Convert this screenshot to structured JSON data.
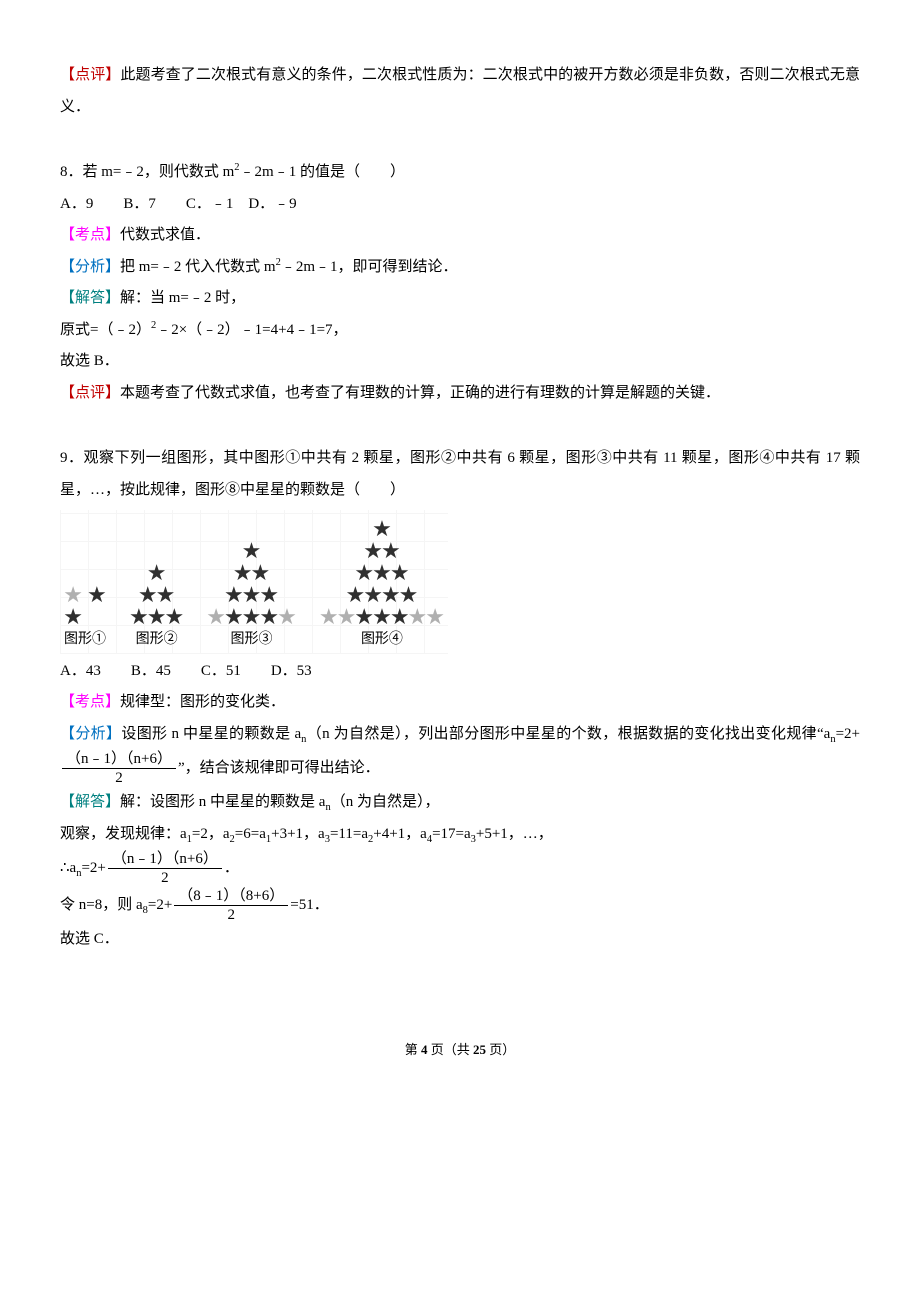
{
  "p1": {
    "label": "【点评】",
    "text": "此题考查了二次根式有意义的条件，二次根式性质为：二次根式中的被开方数必须是非负数，否则二次根式无意义．"
  },
  "q8": {
    "stem_a": "8．若 m=﹣2，则代数式 m",
    "stem_b": "﹣2m﹣1 的值是（　　）",
    "options": "A．9　　B．7　　C．﹣1　D．﹣9",
    "kd_label": "【考点】",
    "kd_text": "代数式求值．",
    "fx_label": "【分析】",
    "fx_a": "把 m=﹣2 代入代数式 m",
    "fx_b": "﹣2m﹣1，即可得到结论．",
    "jd_label": "【解答】",
    "jd_text": "解：当 m=﹣2 时，",
    "jd_line2_a": "原式=（﹣2）",
    "jd_line2_b": "﹣2×（﹣2）﹣1=4+4﹣1=7，",
    "jd_line3": "故选 B．",
    "dp_label": "【点评】",
    "dp_text": "本题考查了代数式求值，也考查了有理数的计算，正确的进行有理数的计算是解题的关键．"
  },
  "q9": {
    "stem": "9．观察下列一组图形，其中图形①中共有 2 颗星，图形②中共有 6 颗星，图形③中共有 11 颗星，图形④中共有 17 颗星，…，按此规律，图形⑧中星星的颗数是（　　）",
    "figure": {
      "labels": [
        "图形①",
        "图形②",
        "图形③",
        "图形④"
      ],
      "star_color": "#303030",
      "side_star_color": "#b0b0b0",
      "triangles": [
        [
          1
        ],
        [
          1,
          2,
          3
        ],
        [
          1,
          2,
          3,
          5
        ],
        [
          1,
          2,
          3,
          4,
          7
        ]
      ],
      "side_counts": [
        1,
        0,
        0,
        0
      ]
    },
    "options": "A．43　　B．45　　C．51　　D．53",
    "kd_label": "【考点】",
    "kd_text": "规律型：图形的变化类．",
    "fx_label": "【分析】",
    "fx_a": "设图形 n 中星星的颗数是 a",
    "fx_b": "（n 为自然是），列出部分图形中星星的个数，根据数据的变化找出变化规律“a",
    "fx_c": "=2+",
    "fx_num": "（n﹣1）（n+6）",
    "fx_den": "2",
    "fx_d": "”，结合该规律即可得出结论．",
    "jd_label": "【解答】",
    "jd_a": "解：设图形 n 中星星的颗数是 a",
    "jd_b": "（n 为自然是），",
    "jd_line2": "观察，发现规律：a",
    "jd_line2_b": "=2，a",
    "jd_line2_c": "=6=a",
    "jd_line2_d": "+3+1，a",
    "jd_line2_e": "=11=a",
    "jd_line2_f": "+4+1，a",
    "jd_line2_g": "=17=a",
    "jd_line2_h": "+5+1，…，",
    "jd_line3_a": "∴a",
    "jd_line3_b": "=2+",
    "jd_line3_num": "（n﹣1）（n+6）",
    "jd_line3_den": "2",
    "jd_line3_c": "．",
    "jd_line4_a": "令 n=8，则 a",
    "jd_line4_b": "=2+",
    "jd_line4_num": "（8﹣1）（8+6）",
    "jd_line4_den": "2",
    "jd_line4_c": "=51．",
    "jd_line5": "故选 C．"
  },
  "footer": {
    "a": "第 ",
    "pg": "4",
    "b": " 页（共 ",
    "total": "25",
    "c": " 页）"
  }
}
